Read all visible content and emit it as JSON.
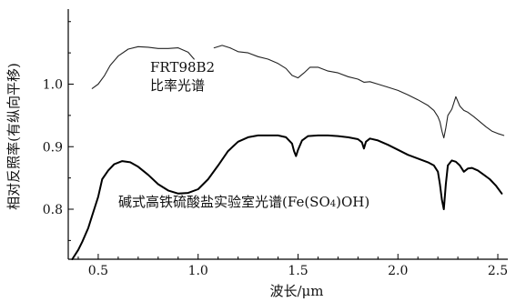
{
  "chart_data": {
    "type": "line",
    "title": "",
    "xlabel": "波长/μm",
    "ylabel": "相对反照率(有纵向平移)",
    "xlim": [
      0.35,
      2.55
    ],
    "ylim": [
      0.72,
      1.12
    ],
    "xticks": [
      0.5,
      1.0,
      1.5,
      2.0,
      2.5
    ],
    "yticks": [
      0.8,
      0.9,
      1.0
    ],
    "xtick_labels": [
      "0.5",
      "1.0",
      "1.5",
      "2.0",
      "2.5"
    ],
    "ytick_labels": [
      "0.8",
      "0.9",
      "1.0"
    ],
    "grid": false,
    "series": [
      {
        "name": "FRT98B2 比率光谱",
        "label_lines": [
          "FRT98B2",
          "比率光谱"
        ],
        "color": "#222222",
        "segments": [
          {
            "x": [
              0.47,
              0.5,
              0.53,
              0.56,
              0.6,
              0.65,
              0.7,
              0.75,
              0.8,
              0.85,
              0.9,
              0.95,
              0.98
            ],
            "y": [
              0.993,
              1.0,
              1.013,
              1.03,
              1.045,
              1.056,
              1.06,
              1.059,
              1.057,
              1.057,
              1.058,
              1.051,
              1.04
            ]
          },
          {
            "x": [
              1.08,
              1.12,
              1.16,
              1.2,
              1.25,
              1.3,
              1.35,
              1.4,
              1.44,
              1.47,
              1.5,
              1.53,
              1.56,
              1.6,
              1.65,
              1.7,
              1.75,
              1.8,
              1.83,
              1.86,
              1.9,
              1.95,
              2.0,
              2.05,
              2.1,
              2.15,
              2.18,
              2.2,
              2.21,
              2.22,
              2.23,
              2.24,
              2.25,
              2.27,
              2.29,
              2.31,
              2.33,
              2.35,
              2.38,
              2.41,
              2.44,
              2.47,
              2.5,
              2.53
            ],
            "y": [
              1.058,
              1.062,
              1.058,
              1.052,
              1.05,
              1.044,
              1.04,
              1.033,
              1.025,
              1.014,
              1.01,
              1.018,
              1.027,
              1.027,
              1.021,
              1.018,
              1.012,
              1.008,
              1.003,
              1.004,
              1.0,
              0.995,
              0.99,
              0.983,
              0.975,
              0.966,
              0.958,
              0.948,
              0.94,
              0.925,
              0.914,
              0.93,
              0.95,
              0.96,
              0.98,
              0.965,
              0.958,
              0.955,
              0.948,
              0.94,
              0.932,
              0.925,
              0.921,
              0.918
            ]
          }
        ]
      },
      {
        "name": "碱式高铁硫酸盐实验室光谱(Fe(SO₄)OH)",
        "label_html": "碱式高铁硫酸盐实验室光谱(Fe(SO<tspan font-size=\"10\">4</tspan>)OH)",
        "label_text": "碱式高铁硫酸盐实验室光谱(Fe(SO₄)OH)",
        "color": "#000000",
        "segments": [
          {
            "x": [
              0.37,
              0.4,
              0.42,
              0.45,
              0.47,
              0.5,
              0.52,
              0.55,
              0.58,
              0.62,
              0.66,
              0.7,
              0.75,
              0.8,
              0.85,
              0.9,
              0.95,
              1.0,
              1.05,
              1.1,
              1.15,
              1.2,
              1.25,
              1.3,
              1.35,
              1.4,
              1.44,
              1.47,
              1.48,
              1.49,
              1.5,
              1.52,
              1.55,
              1.6,
              1.65,
              1.7,
              1.75,
              1.8,
              1.82,
              1.83,
              1.84,
              1.86,
              1.9,
              1.95,
              2.0,
              2.05,
              2.1,
              2.15,
              2.18,
              2.2,
              2.21,
              2.22,
              2.23,
              2.24,
              2.25,
              2.27,
              2.29,
              2.31,
              2.33,
              2.35,
              2.37,
              2.4,
              2.43,
              2.46,
              2.49,
              2.52
            ],
            "y": [
              0.72,
              0.735,
              0.748,
              0.77,
              0.79,
              0.82,
              0.848,
              0.862,
              0.872,
              0.877,
              0.875,
              0.868,
              0.855,
              0.84,
              0.83,
              0.825,
              0.826,
              0.832,
              0.848,
              0.87,
              0.893,
              0.908,
              0.915,
              0.918,
              0.918,
              0.918,
              0.915,
              0.905,
              0.893,
              0.885,
              0.895,
              0.91,
              0.917,
              0.918,
              0.918,
              0.917,
              0.915,
              0.912,
              0.907,
              0.897,
              0.908,
              0.913,
              0.91,
              0.903,
              0.895,
              0.887,
              0.881,
              0.875,
              0.87,
              0.86,
              0.84,
              0.815,
              0.8,
              0.84,
              0.87,
              0.878,
              0.876,
              0.87,
              0.86,
              0.865,
              0.866,
              0.862,
              0.855,
              0.848,
              0.838,
              0.825
            ]
          }
        ]
      }
    ]
  }
}
